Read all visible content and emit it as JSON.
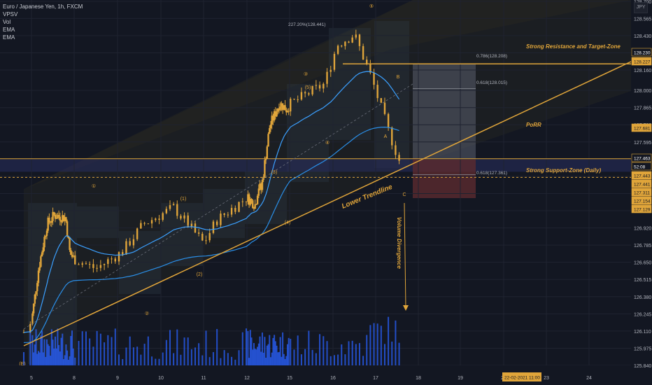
{
  "legend": {
    "symbol": "Euro / Japanese Yen, 1h, FXCM",
    "indicators": [
      "VPSV",
      "Vol",
      "EMA",
      "EMA"
    ]
  },
  "corner_label": "JPY",
  "colors": {
    "background": "#131722",
    "candle": "#e0a53a",
    "trendline": "#e0a53a",
    "ema_fast": "#3ba0ff",
    "ema_slow": "#2a8fe8",
    "volume": "#2962ff",
    "support_zone": "#262b5a",
    "target_zone": "#5a5f6e",
    "stop_zone": "#5b2a30",
    "axis_text": "#b2b5be",
    "price_tag": "#e0a53a"
  },
  "annotations": {
    "resistance": "Strong Resistance and Target-Zone",
    "porr": "PoRR",
    "support": "Strong Support-Zone (Daily)",
    "lower_trendline": "Lower Trendline",
    "volume_divergence": "Volume Divergence",
    "fib_top": "227.20%(128.441)",
    "fib_786": "0.786(128.208)",
    "fib_618_upper": "0.618(128.015)",
    "fib_618_lower": "0.618(127.361)"
  },
  "wave_labels": [
    "(E)",
    "①",
    "②",
    "③",
    "④",
    "⑤",
    "(1)",
    "(2)",
    "(3)",
    "(4)",
    "(5)",
    "A",
    "B",
    "C"
  ],
  "price_tags": [
    "128.230",
    "128.227",
    "127.681",
    "127.463",
    "52:08",
    "127.443",
    "127.441",
    "127.311",
    "127.154",
    "127.129"
  ],
  "x_tooltip": "22-02-2021  11:00",
  "chart_data": {
    "type": "candlestick",
    "instrument": "EUR/JPY",
    "timeframe": "1h",
    "x_ticks": [
      "5",
      "8",
      "9",
      "10",
      "11",
      "12",
      "15",
      "16",
      "17",
      "18",
      "19",
      "22",
      "23",
      "24"
    ],
    "y_ticks": [
      128.7,
      128.565,
      128.43,
      128.295,
      128.16,
      128.0,
      127.865,
      127.73,
      127.595,
      127.46,
      127.325,
      127.19,
      127.055,
      126.92,
      126.785,
      126.65,
      126.515,
      126.38,
      126.245,
      126.11,
      125.975,
      125.84
    ],
    "y_tick_labels": [
      "128.700",
      "128.565",
      "128.430",
      "128.295",
      "128.160",
      "128.000",
      "127.865",
      "127.730",
      "127.595",
      "127.460",
      "127.325",
      "127.190",
      "127.055",
      "126.920",
      "126.785",
      "126.650",
      "126.515",
      "126.380",
      "126.245",
      "126.110",
      "125.975",
      "125.840"
    ],
    "ylim": [
      125.84,
      128.71
    ],
    "price_path_keypoints": [
      {
        "x": 4.9,
        "y": 126.1
      },
      {
        "x": 5.5,
        "y": 126.6
      },
      {
        "x": 6.1,
        "y": 126.95
      },
      {
        "x": 6.6,
        "y": 127.02
      },
      {
        "x": 7.4,
        "y": 127.0
      },
      {
        "x": 7.7,
        "y": 126.72
      },
      {
        "x": 8.5,
        "y": 126.6
      },
      {
        "x": 9.1,
        "y": 126.73
      },
      {
        "x": 9.6,
        "y": 126.95
      },
      {
        "x": 10.3,
        "y": 127.08
      },
      {
        "x": 11.0,
        "y": 126.8
      },
      {
        "x": 11.3,
        "y": 126.98
      },
      {
        "x": 12.0,
        "y": 127.16
      },
      {
        "x": 12.6,
        "y": 127.1
      },
      {
        "x": 12.8,
        "y": 127.25
      },
      {
        "x": 13.0,
        "y": 127.22
      },
      {
        "x": 13.6,
        "y": 127.72
      },
      {
        "x": 14.3,
        "y": 127.9
      },
      {
        "x": 14.8,
        "y": 127.85
      },
      {
        "x": 15.8,
        "y": 128.05
      },
      {
        "x": 16.1,
        "y": 128.36
      },
      {
        "x": 16.5,
        "y": 128.44
      },
      {
        "x": 16.9,
        "y": 128.1
      },
      {
        "x": 17.3,
        "y": 127.68
      },
      {
        "x": 17.55,
        "y": 127.45
      }
    ],
    "levels": {
      "resistance": 128.208,
      "support": 127.361,
      "current": 127.463
    }
  }
}
